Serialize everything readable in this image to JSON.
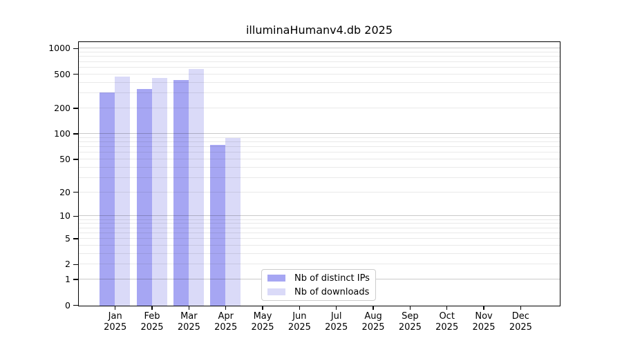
{
  "chart_data": {
    "type": "bar",
    "title": "illuminaHumanv4.db 2025",
    "categories": [
      "Jan 2025",
      "Feb 2025",
      "Mar 2025",
      "Apr 2025",
      "May 2025",
      "Jun 2025",
      "Jul 2025",
      "Aug 2025",
      "Sep 2025",
      "Oct 2025",
      "Nov 2025",
      "Dec 2025"
    ],
    "x_axis": {
      "months": [
        "Jan",
        "Feb",
        "Mar",
        "Apr",
        "May",
        "Jun",
        "Jul",
        "Aug",
        "Sep",
        "Oct",
        "Nov",
        "Dec"
      ],
      "year": "2025"
    },
    "series": [
      {
        "name": "Nb of distinct IPs",
        "color": "#a6a6f3",
        "values": [
          310,
          340,
          435,
          75,
          0,
          0,
          0,
          0,
          0,
          0,
          0,
          0
        ]
      },
      {
        "name": "Nb of downloads",
        "color": "#dadaf8",
        "values": [
          475,
          455,
          585,
          90,
          0,
          0,
          0,
          0,
          0,
          0,
          0,
          0
        ]
      }
    ],
    "y_axis": {
      "scale": "log1p",
      "tick_values": [
        0,
        1,
        2,
        5,
        10,
        20,
        50,
        100,
        200,
        500,
        1000
      ],
      "tick_labels": [
        "0",
        "1",
        "2",
        "5",
        "10",
        "20",
        "50",
        "100",
        "200",
        "500",
        "1000"
      ],
      "range_top": 1180
    },
    "grid": {
      "on": true,
      "major_color": "#c9c9c9",
      "minor_color": "#e9e9e9"
    },
    "legend": {
      "entries": [
        "Nb of distinct IPs",
        "Nb of downloads"
      ]
    },
    "colors": {
      "spine": "#000000",
      "text": "#000000",
      "background": "#ffffff"
    }
  }
}
